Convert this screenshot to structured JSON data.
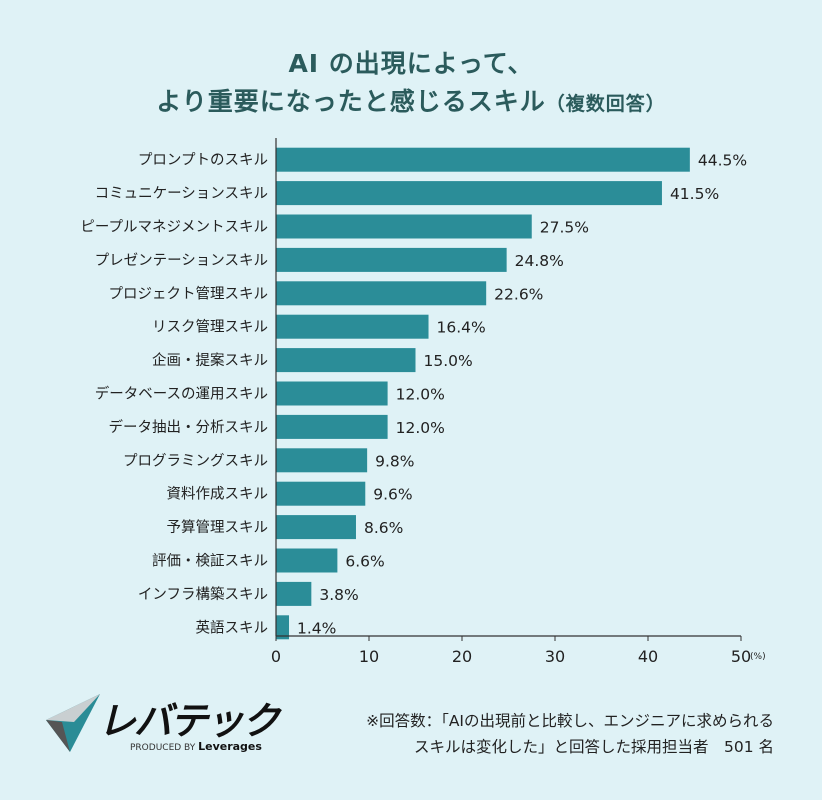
{
  "chart_data": {
    "type": "bar",
    "orientation": "horizontal",
    "title_line1": "AI の出現によって、",
    "title_line2": "より重要になったと感じるスキル",
    "title_suffix": "（複数回答）",
    "categories": [
      "プロンプトのスキル",
      "コミュニケーションスキル",
      "ピープルマネジメントスキル",
      "プレゼンテーションスキル",
      "プロジェクト管理スキル",
      "リスク管理スキル",
      "企画・提案スキル",
      "データベースの運用スキル",
      "データ抽出・分析スキル",
      "プログラミングスキル",
      "資料作成スキル",
      "予算管理スキル",
      "評価・検証スキル",
      "インフラ構築スキル",
      "英語スキル"
    ],
    "values": [
      44.5,
      41.5,
      27.5,
      24.8,
      22.6,
      16.4,
      15.0,
      12.0,
      12.0,
      9.8,
      9.6,
      8.6,
      6.6,
      3.8,
      1.4
    ],
    "data_labels": [
      "44.5%",
      "41.5%",
      "27.5%",
      "24.8%",
      "22.6%",
      "16.4%",
      "15.0%",
      "12.0%",
      "12.0%",
      "9.8%",
      "9.6%",
      "8.6%",
      "6.6%",
      "3.8%",
      "1.4%"
    ],
    "xlim": [
      0,
      50
    ],
    "xticks": [
      "0",
      "10",
      "20",
      "30",
      "40",
      "50"
    ],
    "xunit": "(%)",
    "grid": false,
    "bar_color": "#2b8d98"
  },
  "note": {
    "line1": "※回答数：「AIの出現前と比較し、エンジニアに求められる",
    "line2": "スキルは変化した」と回答した採用担当者　501 名"
  },
  "logo": {
    "name": "レバテック",
    "produced_by": "PRODUCED BY",
    "company": "Leverages"
  }
}
